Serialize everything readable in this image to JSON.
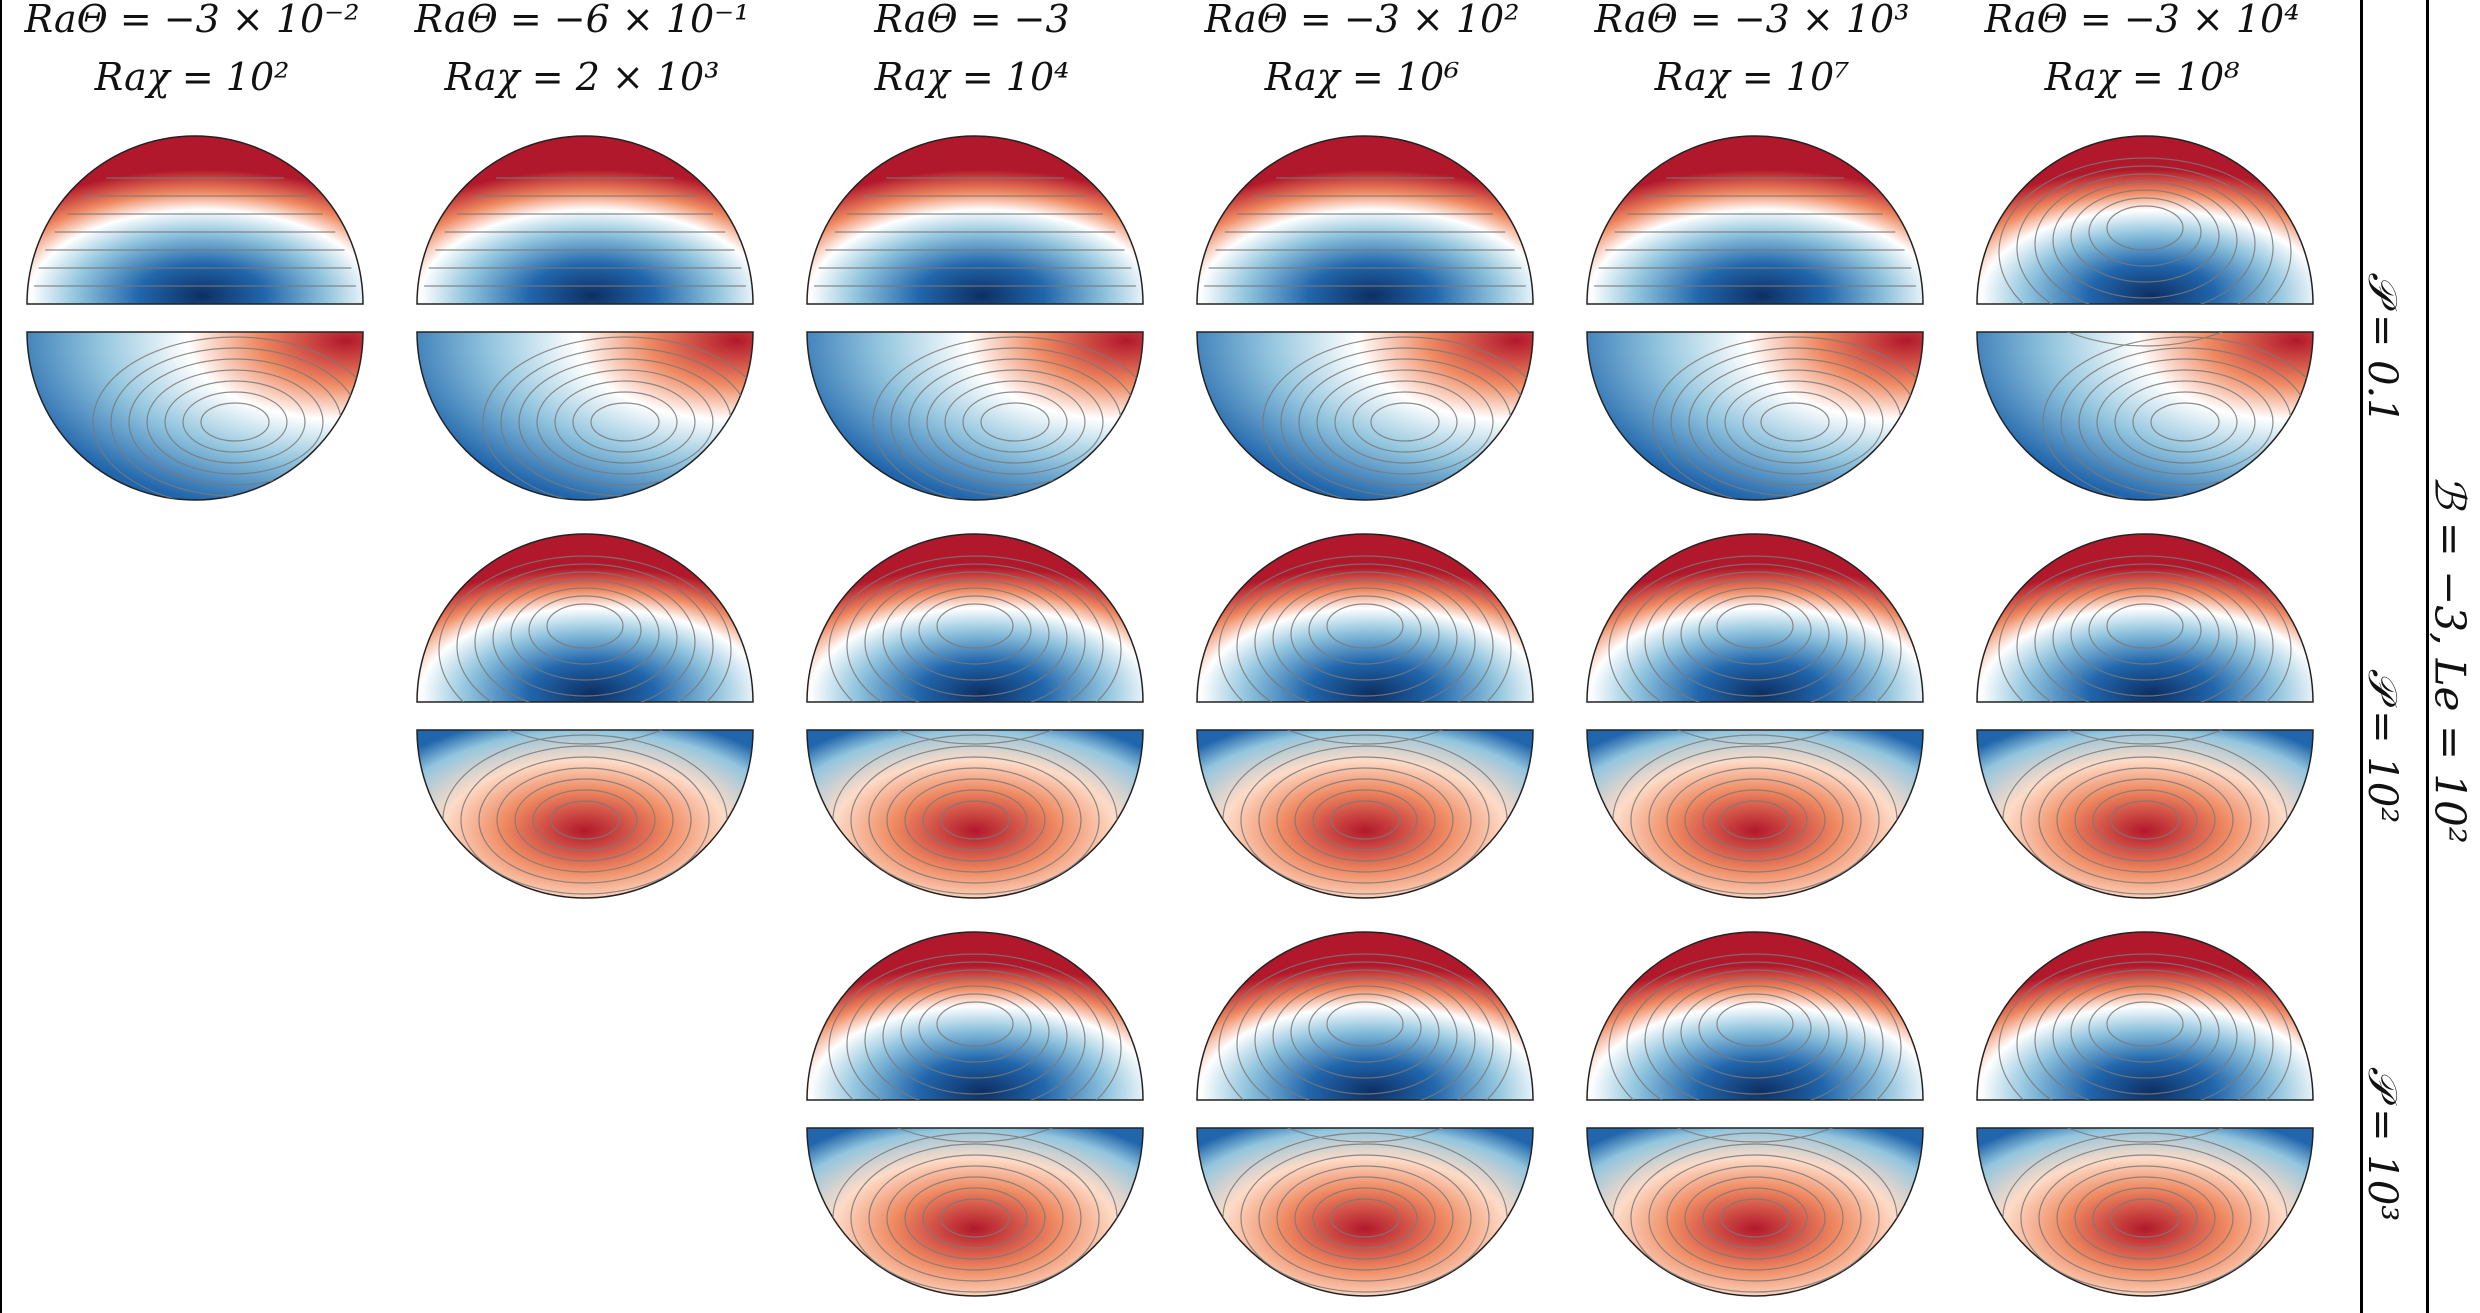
{
  "figure": {
    "columns": [
      {
        "ra_theta": "RaΘ = −3 × 10⁻²",
        "ra_chi": "Raχ = 10²"
      },
      {
        "ra_theta": "RaΘ = −6 × 10⁻¹",
        "ra_chi": "Raχ = 2 × 10³"
      },
      {
        "ra_theta": "RaΘ = −3",
        "ra_chi": "Raχ = 10⁴"
      },
      {
        "ra_theta": "RaΘ = −3 × 10²",
        "ra_chi": "Raχ = 10⁶"
      },
      {
        "ra_theta": "RaΘ = −3 × 10³",
        "ra_chi": "Raχ = 10⁷"
      },
      {
        "ra_theta": "RaΘ = −3 × 10⁴",
        "ra_chi": "Raχ = 10⁸"
      }
    ],
    "rows": [
      {
        "label": "𝒫 = 0.1",
        "present": [
          true,
          true,
          true,
          true,
          true,
          true
        ]
      },
      {
        "label": "𝒫 = 10²",
        "present": [
          false,
          true,
          true,
          true,
          true,
          true
        ]
      },
      {
        "label": "𝒫 = 10³",
        "present": [
          false,
          false,
          true,
          true,
          true,
          true
        ]
      }
    ],
    "field_labels": {
      "theta": "Θ",
      "chi": "χ"
    },
    "group_label": "ℬ = −3, Le = 10²",
    "colors": {
      "hot": "#b2182b",
      "warm": "#ef8a62",
      "light": "#fddbc7",
      "neutral": "#ffffff",
      "cool": "#92c5de",
      "cold": "#2166ac",
      "deep": "#0d2f63",
      "contour": "#7a7a7a"
    }
  }
}
